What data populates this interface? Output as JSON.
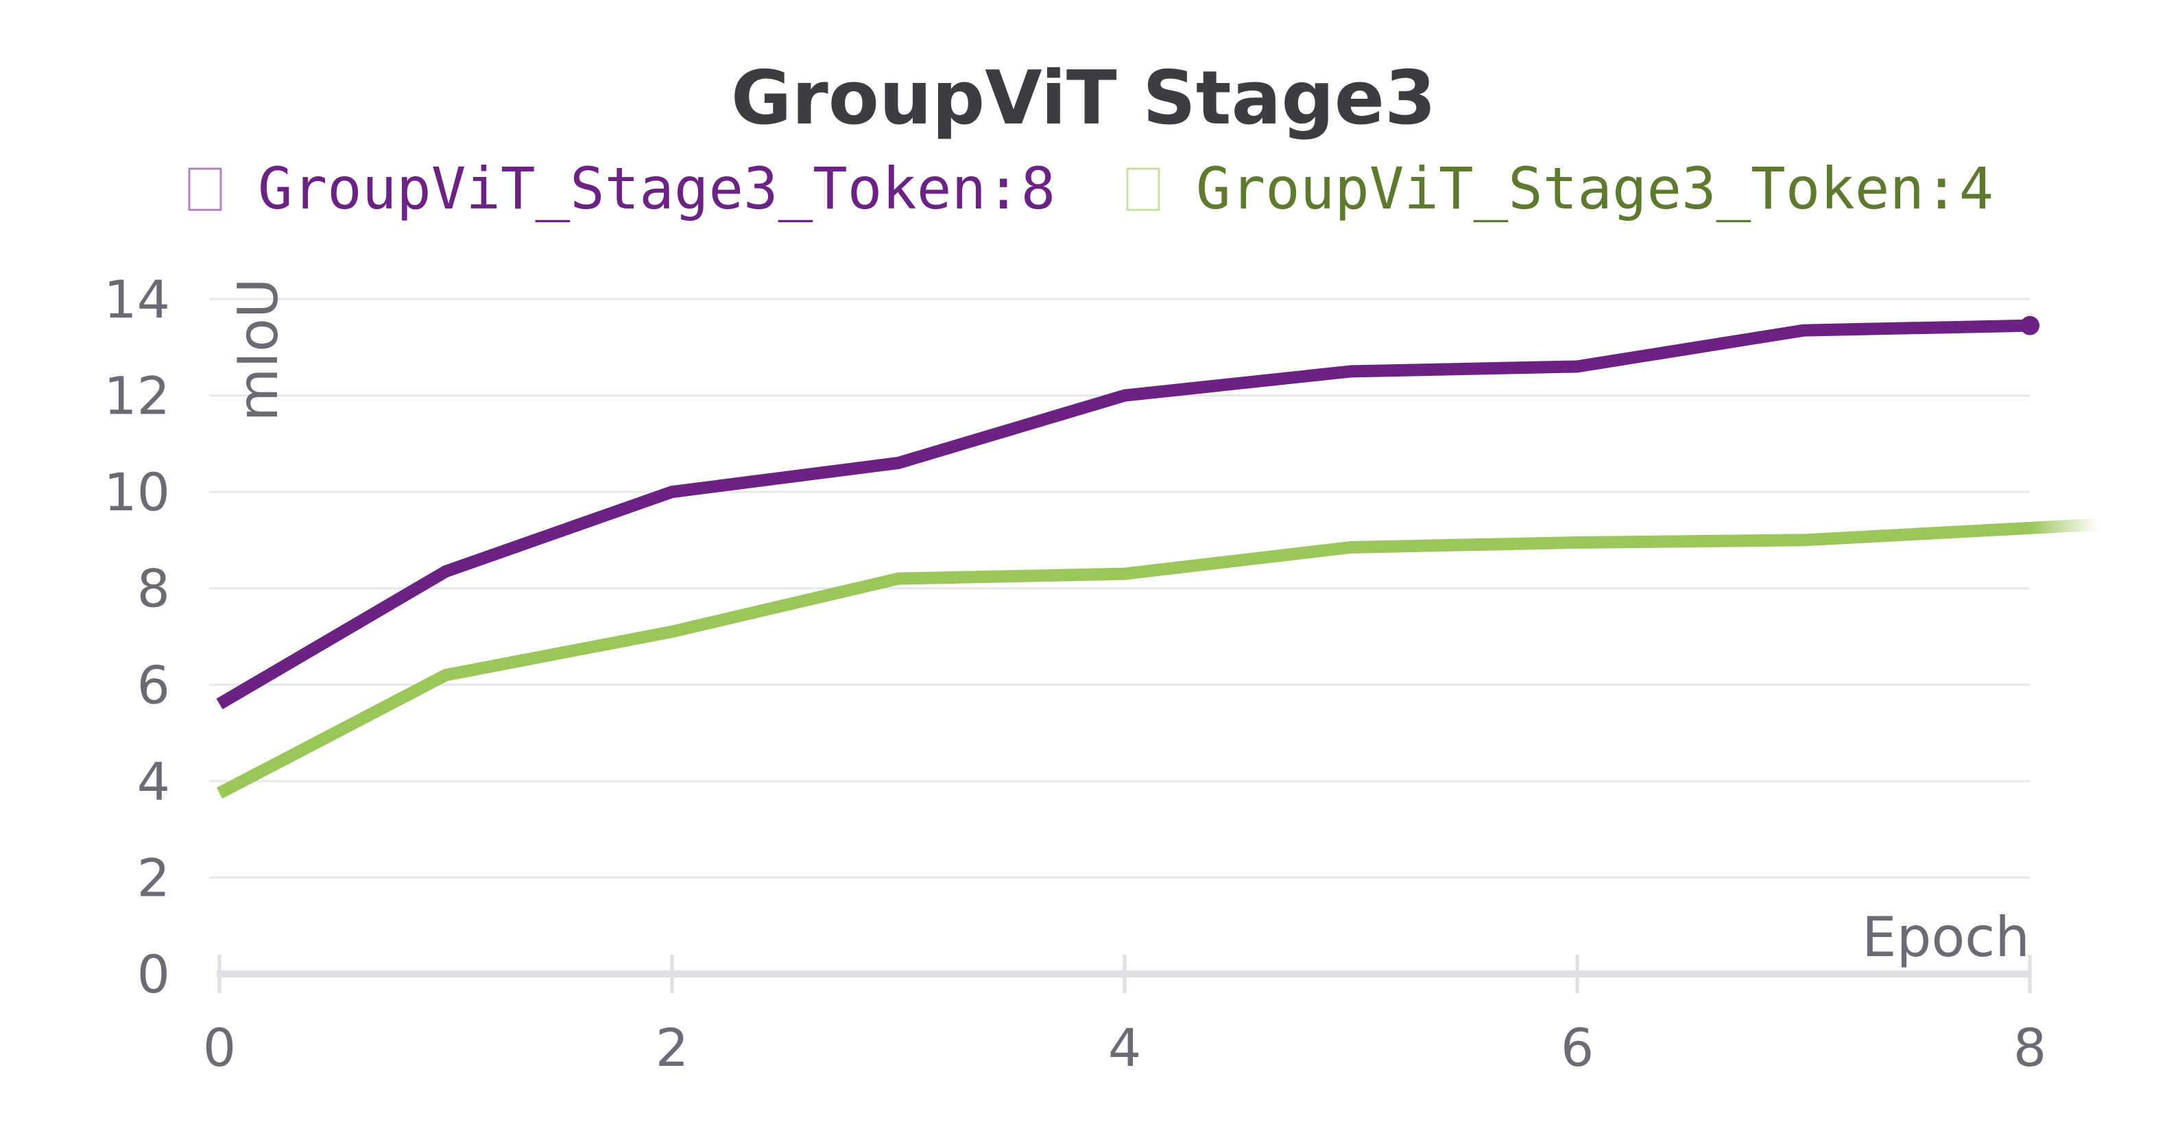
{
  "chart_data": {
    "type": "line",
    "title": "GroupViT Stage3",
    "xlabel": "Epoch",
    "ylabel": "mIoU",
    "xlim": [
      0,
      8
    ],
    "ylim": [
      0,
      14
    ],
    "xticks": [
      0,
      2,
      4,
      6,
      8
    ],
    "yticks": [
      0,
      2,
      4,
      6,
      8,
      10,
      12,
      14
    ],
    "grid": true,
    "legend_position": "top",
    "series": [
      {
        "name": "GroupViT_Stage3_Token:8",
        "color": "#6b2284",
        "x": [
          0,
          1,
          2,
          3,
          4,
          5,
          6,
          7,
          8
        ],
        "y": [
          5.6,
          8.35,
          10.0,
          10.6,
          12.0,
          12.5,
          12.6,
          13.35,
          13.45
        ]
      },
      {
        "name": "GroupViT_Stage3_Token:4",
        "color": "#9bc659",
        "label_color": "#5d7a2e",
        "x": [
          0,
          1,
          2,
          3,
          4,
          5,
          6,
          7,
          8
        ],
        "y": [
          3.75,
          6.2,
          7.1,
          8.2,
          8.3,
          8.85,
          8.95,
          9.0,
          9.25
        ]
      }
    ]
  }
}
